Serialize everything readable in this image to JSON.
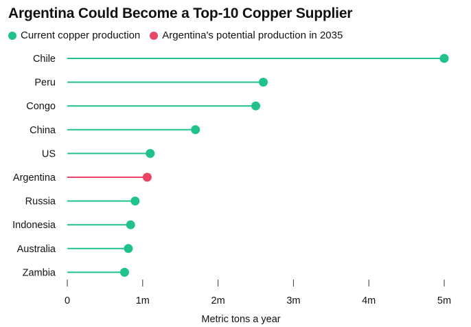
{
  "title": "Argentina Could Become a Top-10 Copper Supplier",
  "legend": [
    {
      "label": "Current copper production",
      "color": "#1fc28a"
    },
    {
      "label": "Argentina's potential production in 2035",
      "color": "#ec4563"
    }
  ],
  "chart_data": {
    "type": "lollipop",
    "orientation": "horizontal",
    "title": "Argentina Could Become a Top-10 Copper Supplier",
    "xlabel": "Metric tons a year",
    "ylabel": "",
    "xlim": [
      0,
      5000000
    ],
    "x_ticks": [
      0,
      1000000,
      2000000,
      3000000,
      4000000,
      5000000
    ],
    "x_tick_labels": [
      "0",
      "1m",
      "2m",
      "3m",
      "4m",
      "5m"
    ],
    "grid": false,
    "legend_position": "top-left",
    "categories": [
      "Chile",
      "Peru",
      "Congo",
      "China",
      "US",
      "Argentina",
      "Russia",
      "Indonesia",
      "Australia",
      "Zambia"
    ],
    "series": [
      {
        "name": "Current copper production",
        "color": "#1fc28a",
        "values": [
          5000000,
          2600000,
          2500000,
          1700000,
          1100000,
          null,
          900000,
          840000,
          810000,
          760000
        ]
      },
      {
        "name": "Argentina's potential production in 2035",
        "color": "#ec4563",
        "values": [
          null,
          null,
          null,
          null,
          null,
          1060000,
          null,
          null,
          null,
          null
        ]
      }
    ]
  }
}
